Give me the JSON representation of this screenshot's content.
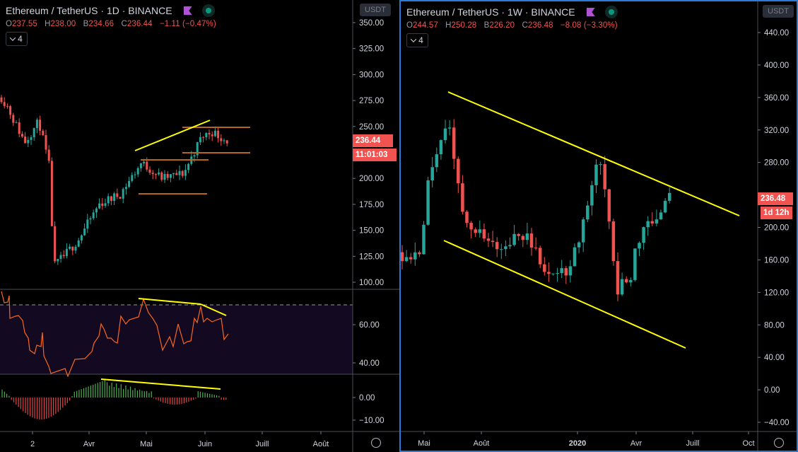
{
  "left_chart": {
    "symbol": "Ethereum / TetherUS",
    "interval": "1D",
    "exchange": "BINANCE",
    "ohlc": {
      "o_label": "O",
      "o": "237.55",
      "h_label": "H",
      "h": "238.00",
      "l_label": "B",
      "l": "234.66",
      "c_label": "C",
      "c": "236.44",
      "change": "−1.11 (−0.47%)"
    },
    "indicators_count": "4",
    "currency": "USDT",
    "last_price": "236.44",
    "countdown": "11:01:03",
    "price_axis": [
      "350.00",
      "325.00",
      "300.00",
      "275.00",
      "250.00",
      "200.00",
      "175.00",
      "150.00",
      "125.00",
      "100.00"
    ],
    "rsi_axis": [
      "60.00",
      "40.00"
    ],
    "macd_axis": [
      "0.00",
      "−10.00"
    ],
    "time_axis": [
      "2",
      "Avr",
      "Mai",
      "Juin",
      "Juill",
      "Août"
    ]
  },
  "right_chart": {
    "symbol": "Ethereum / TetherUS",
    "interval": "1W",
    "exchange": "BINANCE",
    "ohlc": {
      "o_label": "O",
      "o": "244.57",
      "h_label": "H",
      "h": "250.28",
      "l_label": "B",
      "l": "226.20",
      "c_label": "C",
      "c": "236.48",
      "change": "−8.08 (−3.30%)"
    },
    "indicators_count": "4",
    "currency": "USDT",
    "last_price": "236.48",
    "countdown": "1d 12h",
    "price_axis": [
      "440.00",
      "400.00",
      "360.00",
      "320.00",
      "280.00",
      "200.00",
      "160.00",
      "120.00",
      "80.00",
      "40.00",
      "0.00",
      "−40.00"
    ],
    "time_axis": [
      "Mai",
      "Août",
      "2020",
      "Avr",
      "Juill",
      "Oct"
    ]
  },
  "colors": {
    "up": "#26a69a",
    "down": "#ef5350",
    "trendline": "#ffff00",
    "range": "#b5651d",
    "rsi": "#f7671e",
    "rsi_bg": "#130a22",
    "macd_up": "#4caf50",
    "macd_down": "#e04848",
    "accent": "#2a7bd8"
  },
  "chart_data": [
    {
      "type": "candlestick",
      "title": "Ethereum / TetherUS · 1D · BINANCE",
      "ylabel": "USDT",
      "ylim": [
        90,
        360
      ],
      "x_ticks": [
        "2",
        "Avr",
        "Mai",
        "Juin",
        "Juill",
        "Août"
      ],
      "annotations": [
        "rising resistance trendline ~205→255",
        "range box 185–220",
        "range box 215–250"
      ],
      "approx_close_path": [
        [
          0,
          280
        ],
        [
          10,
          270
        ],
        [
          20,
          255
        ],
        [
          35,
          235
        ],
        [
          55,
          255
        ],
        [
          70,
          210
        ],
        [
          76,
          115
        ],
        [
          90,
          125
        ],
        [
          110,
          140
        ],
        [
          140,
          175
        ],
        [
          170,
          185
        ],
        [
          200,
          215
        ],
        [
          230,
          200
        ],
        [
          260,
          205
        ],
        [
          285,
          240
        ],
        [
          300,
          245
        ],
        [
          320,
          236.44
        ]
      ],
      "last": 236.44
    },
    {
      "type": "line",
      "title": "RSI",
      "ylim": [
        30,
        75
      ],
      "y_ticks": [
        60,
        40
      ],
      "overbought": 70,
      "annotations": [
        "bearish divergence trendline"
      ]
    },
    {
      "type": "bar",
      "title": "MACD histogram",
      "ylim": [
        -14,
        8
      ],
      "y_ticks": [
        0,
        -10
      ]
    },
    {
      "type": "candlestick",
      "title": "Ethereum / TetherUS · 1W · BINANCE",
      "ylabel": "USDT",
      "ylim": [
        -50,
        460
      ],
      "x_ticks": [
        "Mai",
        "Août",
        "2020",
        "Avr",
        "Juill",
        "Oct"
      ],
      "annotations": [
        "descending channel upper ~365→215",
        "descending channel lower ~180→55"
      ],
      "approx_close_path": [
        [
          "Apr19",
          165
        ],
        [
          "May19",
          250
        ],
        [
          "Jun19",
          310
        ],
        [
          "Jul19",
          215
        ],
        [
          "Aug19",
          190
        ],
        [
          "Sep19",
          180
        ],
        [
          "Oct19",
          180
        ],
        [
          "Nov19",
          150
        ],
        [
          "Dec19",
          130
        ],
        [
          "Jan20",
          165
        ],
        [
          "Feb20",
          270
        ],
        [
          "Mar20",
          135
        ],
        [
          "Apr20",
          190
        ],
        [
          "May20",
          205
        ],
        [
          "Jun20",
          236.48
        ]
      ],
      "last": 236.48
    }
  ]
}
